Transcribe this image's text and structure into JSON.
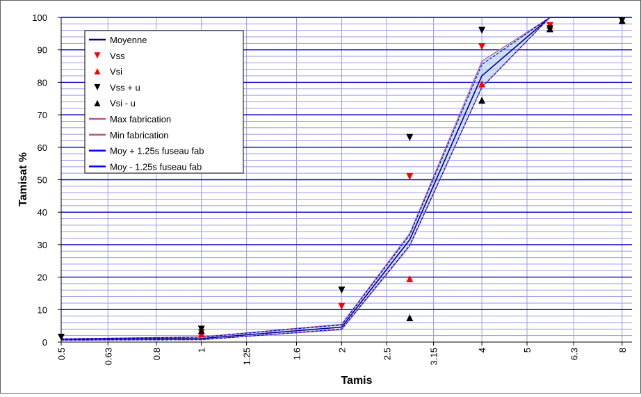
{
  "chart_data": {
    "type": "line",
    "xlabel": "Tamis",
    "ylabel": "Tamisat %",
    "x_scale": "log",
    "x_ticks": [
      "0.5",
      "0.63",
      "0.8",
      "1",
      "1.25",
      "1.6",
      "2",
      "2.5",
      "3.15",
      "4",
      "5",
      "6.3",
      "8"
    ],
    "y_ticks": [
      "0",
      "10",
      "20",
      "30",
      "40",
      "50",
      "60",
      "70",
      "80",
      "90",
      "100"
    ],
    "ylim": [
      0,
      100
    ],
    "grid": "major every 10, minor every 2",
    "legend_position": "top-left",
    "x": [
      0.5,
      1,
      2,
      2.8,
      4,
      5.6,
      8
    ],
    "series": [
      {
        "name": "Moyenne",
        "kind": "line",
        "color": "#000080",
        "values": [
          0.8,
          1.1,
          4.6,
          31.5,
          82,
          100,
          100
        ]
      },
      {
        "name": "Vss",
        "kind": "marker-down",
        "color": "#ff0000",
        "values": [
          null,
          3,
          11,
          51,
          91,
          97.5,
          null
        ]
      },
      {
        "name": "Vsi",
        "kind": "marker-up",
        "color": "#ff0000",
        "values": [
          null,
          2.5,
          null,
          19.5,
          79.5,
          97.5,
          null
        ]
      },
      {
        "name": "Vss + u",
        "kind": "marker-down",
        "color": "#000000",
        "values": [
          1.5,
          4,
          16,
          63,
          96,
          96.5,
          99
        ]
      },
      {
        "name": "Vsi - u",
        "kind": "marker-up",
        "color": "#000000",
        "values": [
          null,
          3.5,
          null,
          7.5,
          74.5,
          96.5,
          99
        ]
      },
      {
        "name": "Max fabrication",
        "kind": "line",
        "color": "#b05a80",
        "values": [
          1.0,
          1.6,
          5.5,
          33.5,
          86.5,
          100,
          100
        ]
      },
      {
        "name": "Min fabrication",
        "kind": "line",
        "color": "#b05a80",
        "values": [
          0.6,
          0.8,
          3.8,
          29.5,
          78.5,
          100,
          100
        ]
      },
      {
        "name": "Moy + 1.25s fuseau fab",
        "kind": "dashed",
        "color": "#0000ff",
        "values": [
          1.0,
          1.5,
          5.3,
          33,
          85.5,
          100,
          100
        ]
      },
      {
        "name": "Moy - 1.25s fuseau fab",
        "kind": "dashed",
        "color": "#0000ff",
        "values": [
          0.6,
          0.7,
          4.0,
          29.8,
          78.5,
          100,
          100
        ]
      }
    ]
  }
}
